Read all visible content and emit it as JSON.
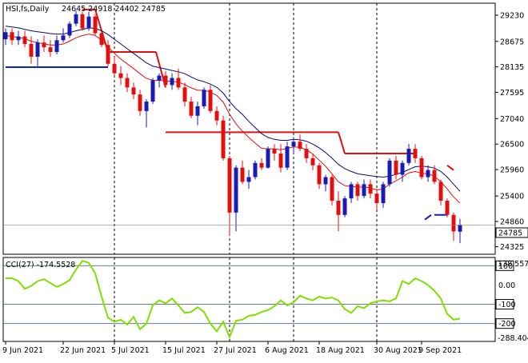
{
  "chart_data": {
    "type": "candlestick",
    "price_panel": {
      "header": {
        "symbol": "HSI,fs,Daily",
        "ohlc_text": "24645 24918 24402 24785"
      },
      "y_ticks": [
        "29230",
        "28675",
        "28135",
        "27595",
        "27040",
        "26500",
        "25960",
        "25400",
        "24860",
        "24325"
      ],
      "ylim": [
        24200,
        29450
      ],
      "last_price_label": "24785",
      "last_price": 24785,
      "candles": [
        [
          28720,
          28950,
          28600,
          28870
        ],
        [
          28870,
          28950,
          28600,
          28700
        ],
        [
          28700,
          28900,
          28600,
          28780
        ],
        [
          28780,
          28900,
          28550,
          28620
        ],
        [
          28620,
          28780,
          28200,
          28350
        ],
        [
          28350,
          28720,
          28150,
          28650
        ],
        [
          28650,
          28800,
          28450,
          28550
        ],
        [
          28550,
          28700,
          28350,
          28450
        ],
        [
          28450,
          28800,
          28400,
          28700
        ],
        [
          28700,
          28950,
          28650,
          28800
        ],
        [
          28800,
          29100,
          28750,
          29050
        ],
        [
          29050,
          29330,
          29000,
          29250
        ],
        [
          29250,
          29300,
          28900,
          28950
        ],
        [
          28950,
          29300,
          28900,
          29200
        ],
        [
          29200,
          29250,
          28800,
          28850
        ],
        [
          28850,
          28900,
          28550,
          28600
        ],
        [
          28600,
          28700,
          28150,
          28200
        ],
        [
          28200,
          28350,
          27950,
          28000
        ],
        [
          28000,
          28150,
          27750,
          27900
        ],
        [
          27900,
          28000,
          27600,
          27700
        ],
        [
          27700,
          27800,
          27450,
          27550
        ],
        [
          27550,
          27650,
          27100,
          27200
        ],
        [
          27200,
          27450,
          26850,
          27400
        ],
        [
          27400,
          27900,
          27350,
          27850
        ],
        [
          27850,
          28000,
          27700,
          27950
        ],
        [
          27950,
          28050,
          27700,
          27750
        ],
        [
          27750,
          28000,
          27650,
          27900
        ],
        [
          27900,
          28100,
          27650,
          27700
        ],
        [
          27700,
          27800,
          27300,
          27400
        ],
        [
          27400,
          27500,
          27050,
          27100
        ],
        [
          27100,
          27400,
          26900,
          27300
        ],
        [
          27300,
          27700,
          27250,
          27650
        ],
        [
          27650,
          27750,
          27150,
          27200
        ],
        [
          27200,
          27300,
          26900,
          27000
        ],
        [
          27000,
          27100,
          26150,
          26200
        ],
        [
          26200,
          26250,
          24550,
          25050
        ],
        [
          25050,
          26050,
          24650,
          26000
        ],
        [
          26000,
          26150,
          25650,
          25700
        ],
        [
          25700,
          25950,
          25550,
          25800
        ],
        [
          25800,
          26150,
          25750,
          26100
        ],
        [
          26100,
          26200,
          25950,
          26000
        ],
        [
          26000,
          26450,
          25980,
          26400
        ],
        [
          26400,
          26500,
          26150,
          26300
        ],
        [
          26300,
          26500,
          25900,
          26000
        ],
        [
          26000,
          26550,
          25950,
          26450
        ],
        [
          26450,
          26650,
          26300,
          26550
        ],
        [
          26550,
          26700,
          26350,
          26400
        ],
        [
          26400,
          26500,
          26100,
          26200
        ],
        [
          26200,
          26300,
          25950,
          26050
        ],
        [
          26050,
          26100,
          25550,
          25650
        ],
        [
          25650,
          25850,
          25500,
          25800
        ],
        [
          25800,
          25850,
          25200,
          25300
        ],
        [
          25300,
          25500,
          24650,
          25000
        ],
        [
          25000,
          25400,
          24950,
          25350
        ],
        [
          25350,
          25700,
          25250,
          25650
        ],
        [
          25650,
          25700,
          25300,
          25400
        ],
        [
          25400,
          25750,
          25350,
          25650
        ],
        [
          25650,
          25750,
          25350,
          25450
        ],
        [
          25450,
          25550,
          25100,
          25250
        ],
        [
          25250,
          25700,
          25150,
          25650
        ],
        [
          25650,
          26200,
          25600,
          26150
        ],
        [
          26150,
          26250,
          25750,
          25850
        ],
        [
          25850,
          26150,
          25700,
          26100
        ],
        [
          26100,
          26500,
          26050,
          26400
        ],
        [
          26400,
          26500,
          26100,
          26200
        ],
        [
          26200,
          26250,
          25750,
          25800
        ],
        [
          25800,
          26050,
          25700,
          25950
        ],
        [
          25950,
          26050,
          25650,
          25700
        ],
        [
          25700,
          25750,
          25200,
          25300
        ],
        [
          25300,
          25350,
          24950,
          25000
        ],
        [
          25000,
          25050,
          24450,
          24650
        ],
        [
          24645,
          24918,
          24402,
          24785
        ]
      ],
      "overlays": [
        {
          "name": "ma_dark",
          "color": "#0a0a6e",
          "values": [
            29000,
            28980,
            28960,
            28930,
            28900,
            28880,
            28860,
            28840,
            28830,
            28830,
            28860,
            28900,
            28930,
            28960,
            28950,
            28900,
            28820,
            28720,
            28620,
            28520,
            28420,
            28320,
            28220,
            28150,
            28120,
            28090,
            28060,
            28030,
            27990,
            27920,
            27860,
            27820,
            27770,
            27700,
            27580,
            27400,
            27250,
            27130,
            26980,
            26850,
            26720,
            26640,
            26600,
            26580,
            26580,
            26600,
            26590,
            26560,
            26500,
            26420,
            26320,
            26200,
            26070,
            25980,
            25920,
            25870,
            25850,
            25830,
            25810,
            25800,
            25820,
            25860,
            25900,
            25960,
            26020,
            26030,
            26020,
            25990,
            25920,
            25800,
            25650,
            25500
          ]
        },
        {
          "name": "ma_red",
          "color": "#e01010",
          "values": [
            28800,
            28780,
            28760,
            28730,
            28680,
            28650,
            28620,
            28600,
            28600,
            28620,
            28680,
            28750,
            28800,
            28830,
            28800,
            28700,
            28560,
            28420,
            28300,
            28200,
            28100,
            27990,
            27890,
            27850,
            27850,
            27840,
            27830,
            27810,
            27760,
            27690,
            27640,
            27640,
            27600,
            27530,
            27390,
            27130,
            26930,
            26770,
            26640,
            26520,
            26410,
            26400,
            26400,
            26380,
            26410,
            26440,
            26430,
            26380,
            26290,
            26160,
            26030,
            25870,
            25700,
            25620,
            25600,
            25590,
            25590,
            25570,
            25530,
            25550,
            25650,
            25720,
            25800,
            25890,
            25920,
            25880,
            25870,
            25820,
            25700,
            25550,
            25380,
            25250
          ]
        }
      ],
      "levels": [
        {
          "color": "#0b22c8",
          "segments": [
            [
              0,
              28130,
              16,
              28130
            ],
            [
              67,
              25000,
              69,
              25000
            ],
            [
              65.5,
              24900,
              66.5,
              25000
            ]
          ]
        },
        {
          "color": "#e01010",
          "segments": [
            [
              12,
              29350,
              14,
              29350
            ],
            [
              14,
              29350,
              16,
              28450
            ],
            [
              16,
              28450,
              23.5,
              28450
            ],
            [
              23.5,
              28450,
              25,
              27700
            ],
            [
              25,
              26750,
              34,
              26750
            ],
            [
              34,
              26750,
              36,
              26750
            ],
            [
              36,
              26750,
              52,
              26750
            ],
            [
              52,
              26750,
              53,
              26300
            ],
            [
              53,
              26300,
              64,
              26300
            ],
            [
              69,
              26050,
              70,
              25950
            ]
          ]
        }
      ],
      "vertical_separators": [
        17,
        35,
        45,
        58
      ]
    },
    "cci_panel": {
      "title": "CCI(27) -174.5528",
      "ylim": [
        -288.404,
        138.557
      ],
      "top_label": "138.557",
      "bottom_label": "-288.404",
      "ticks": [
        {
          "value": 100,
          "label": "100",
          "boxed": true
        },
        {
          "value": 0,
          "label": "0.00",
          "boxed": false
        },
        {
          "value": -100,
          "label": "-100",
          "boxed": true
        },
        {
          "value": -200,
          "label": "-200",
          "boxed": true
        }
      ],
      "color": "#7fe000",
      "values": [
        35,
        35,
        20,
        -20,
        -5,
        20,
        30,
        10,
        -10,
        5,
        25,
        80,
        125,
        115,
        60,
        -60,
        -170,
        -190,
        -180,
        -205,
        -165,
        -230,
        -200,
        -105,
        -80,
        -95,
        -70,
        -105,
        -145,
        -140,
        -115,
        -140,
        -200,
        -240,
        -190,
        -270,
        -185,
        -180,
        -160,
        -155,
        -140,
        -130,
        -110,
        -80,
        -105,
        -90,
        -55,
        -70,
        -80,
        -60,
        -70,
        -65,
        -80,
        -125,
        -145,
        -110,
        -120,
        -95,
        -85,
        -80,
        -85,
        -70,
        20,
        5,
        35,
        20,
        0,
        -30,
        -70,
        -150,
        -180,
        -174.5528
      ]
    },
    "x_tick_labels": [
      {
        "index": 0,
        "label": "9 Jun 2021"
      },
      {
        "index": 9,
        "label": "22 Jun 2021"
      },
      {
        "index": 17,
        "label": "5 Jul 2021"
      },
      {
        "index": 25,
        "label": "15 Jul 2021"
      },
      {
        "index": 33,
        "label": "27 Jul 2021"
      },
      {
        "index": 41,
        "label": "6 Aug 2021"
      },
      {
        "index": 49,
        "label": "18 Aug 2021"
      },
      {
        "index": 58,
        "label": "30 Aug 2021"
      },
      {
        "index": 65,
        "label": "9 Sep 2021"
      }
    ],
    "colors": {
      "bull": "#1a1ab4",
      "bear": "#e01010",
      "axis": "#000000"
    }
  }
}
